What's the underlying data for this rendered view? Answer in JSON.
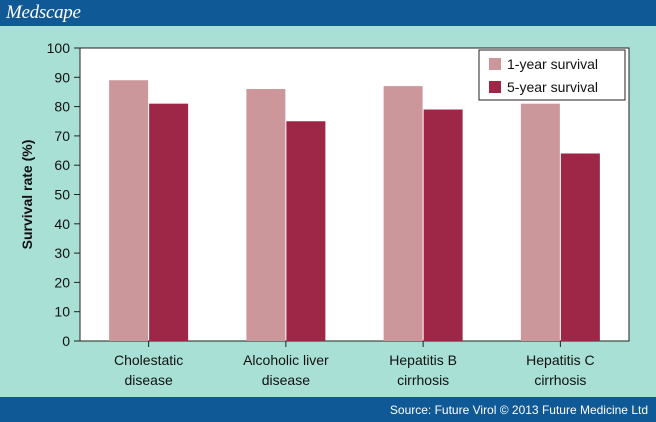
{
  "brand": "Medscape",
  "source": "Source: Future Virol © 2013 Future Medicine Ltd",
  "colors": {
    "background": "#a8e0d6",
    "bar_1yr": "#cc979b",
    "bar_5yr": "#9e2748",
    "header": "#0f5a96"
  },
  "chart_data": {
    "type": "bar",
    "categories": [
      [
        "Cholestatic",
        "disease"
      ],
      [
        "Alcoholic liver",
        "disease"
      ],
      [
        "Hepatitis B",
        "cirrhosis"
      ],
      [
        "Hepatitis C",
        "cirrhosis"
      ]
    ],
    "series": [
      {
        "name": "1-year survival",
        "values": [
          89,
          86,
          87,
          81
        ]
      },
      {
        "name": "5-year survival",
        "values": [
          81,
          75,
          79,
          64
        ]
      }
    ],
    "xlabel": "",
    "ylabel": "Survival rate (%)",
    "ylim": [
      0,
      100
    ],
    "yticks": [
      0,
      10,
      20,
      30,
      40,
      50,
      60,
      70,
      80,
      90,
      100
    ],
    "legend_position": "top-right",
    "grid": false
  }
}
